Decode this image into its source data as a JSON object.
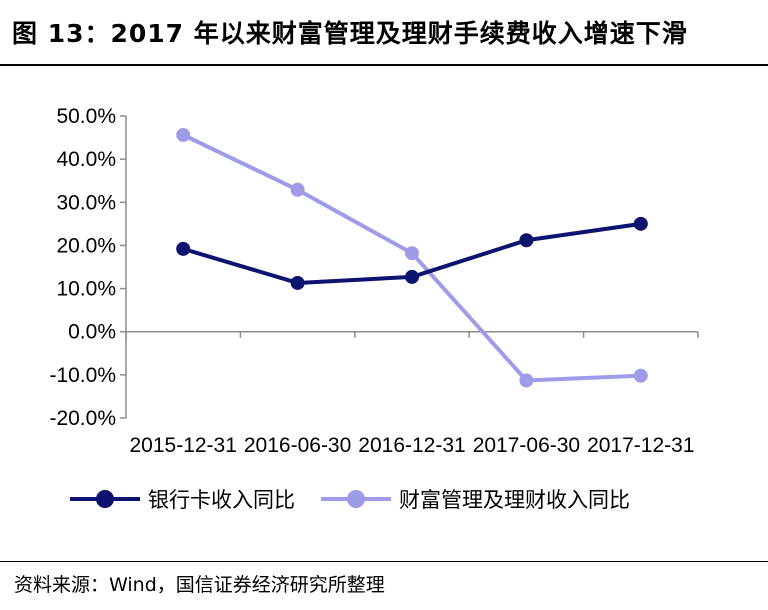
{
  "header": {
    "title": "图 13：2017 年以来财富管理及理财手续费收入增速下滑"
  },
  "footer": {
    "source": "资料来源：Wind，国信证券经济研究所整理"
  },
  "chart_data": {
    "type": "line",
    "categories": [
      "2015-12-31",
      "2016-06-30",
      "2016-12-31",
      "2017-06-30",
      "2017-12-31"
    ],
    "series": [
      {
        "name": "银行卡收入同比",
        "values": [
          19.2,
          11.3,
          12.7,
          21.2,
          25.0
        ],
        "color": "#0d1470"
      },
      {
        "name": "财富管理及理财收入同比",
        "values": [
          45.6,
          32.9,
          18.2,
          -11.3,
          -10.2
        ],
        "color": "#9e9ce8"
      }
    ],
    "yticks": [
      "50.0%",
      "40.0%",
      "30.0%",
      "20.0%",
      "10.0%",
      "0.0%",
      "-10.0%",
      "-20.0%"
    ],
    "ylim": [
      -20,
      50
    ],
    "grid": false,
    "legend_position": "bottom"
  }
}
